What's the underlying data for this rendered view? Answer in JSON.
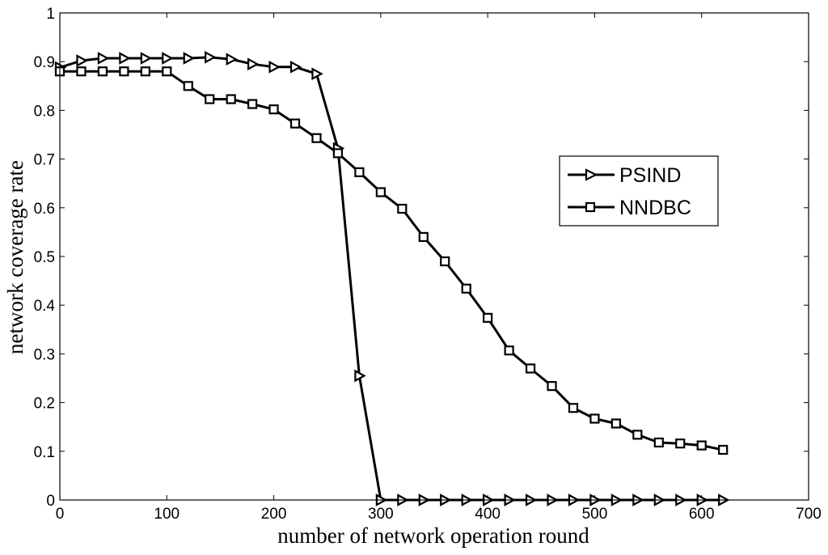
{
  "chart_data": {
    "type": "line",
    "xlabel": "number of network operation round",
    "ylabel": "network coverage rate",
    "xlim": [
      0,
      700
    ],
    "ylim": [
      0,
      1
    ],
    "xticks": [
      0,
      100,
      200,
      300,
      400,
      500,
      600,
      700
    ],
    "yticks": [
      0,
      0.1,
      0.2,
      0.3,
      0.4,
      0.5,
      0.6,
      0.7,
      0.8,
      0.9,
      1
    ],
    "xtick_labels": [
      "0",
      "100",
      "200",
      "300",
      "400",
      "500",
      "600",
      "700"
    ],
    "ytick_labels": [
      "0",
      "0.1",
      "0.2",
      "0.3",
      "0.4",
      "0.5",
      "0.6",
      "0.7",
      "0.8",
      "0.9",
      "1"
    ],
    "grid": false,
    "legend_position": "right",
    "series": [
      {
        "name": "PSIND",
        "marker": "triangle-right",
        "color": "#000000",
        "x": [
          0,
          20,
          40,
          60,
          80,
          100,
          120,
          140,
          160,
          180,
          200,
          220,
          240,
          260,
          280,
          300,
          320,
          340,
          360,
          380,
          400,
          420,
          440,
          460,
          480,
          500,
          520,
          540,
          560,
          580,
          600,
          620
        ],
        "y": [
          0.888,
          0.902,
          0.907,
          0.907,
          0.907,
          0.907,
          0.907,
          0.909,
          0.905,
          0.895,
          0.889,
          0.889,
          0.875,
          0.722,
          0.255,
          0,
          0,
          0,
          0,
          0,
          0,
          0,
          0,
          0,
          0,
          0,
          0,
          0,
          0,
          0,
          0,
          0
        ]
      },
      {
        "name": "NNDBC",
        "marker": "square",
        "color": "#000000",
        "x": [
          0,
          20,
          40,
          60,
          80,
          100,
          120,
          140,
          160,
          180,
          200,
          220,
          240,
          260,
          280,
          300,
          320,
          340,
          360,
          380,
          400,
          420,
          440,
          460,
          480,
          500,
          520,
          540,
          560,
          580,
          600,
          620
        ],
        "y": [
          0.88,
          0.88,
          0.88,
          0.88,
          0.88,
          0.88,
          0.85,
          0.823,
          0.823,
          0.813,
          0.802,
          0.773,
          0.743,
          0.712,
          0.673,
          0.632,
          0.598,
          0.54,
          0.49,
          0.434,
          0.374,
          0.307,
          0.27,
          0.234,
          0.189,
          0.167,
          0.157,
          0.134,
          0.118,
          0.116,
          0.112,
          0.103
        ]
      }
    ]
  }
}
